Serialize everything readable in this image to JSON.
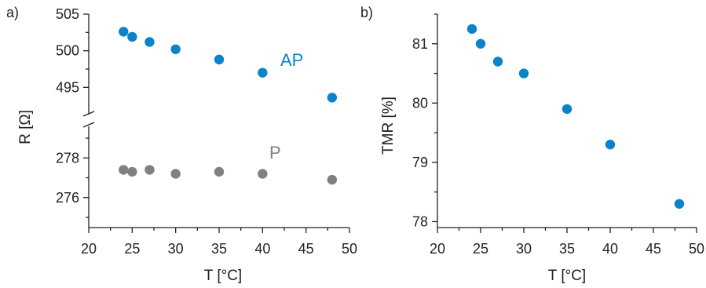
{
  "chart_data": [
    {
      "type": "scatter",
      "panel_label": "a)",
      "xlabel": "T [°C]",
      "ylabel": "R [Ω]",
      "xlim": [
        20,
        50
      ],
      "x_ticks": [
        20,
        25,
        30,
        35,
        40,
        45,
        50
      ],
      "y_broken": true,
      "upper_ylim": [
        493,
        505
      ],
      "upper_y_ticks": [
        495,
        500,
        505
      ],
      "lower_ylim": [
        275,
        279
      ],
      "lower_y_ticks": [
        276,
        278
      ],
      "grid": false,
      "series": [
        {
          "name": "AP",
          "color": "#0a83c9",
          "x": [
            24,
            25,
            27,
            30,
            35,
            40,
            48
          ],
          "y": [
            502.6,
            501.9,
            501.2,
            500.2,
            498.8,
            497.0,
            493.6
          ]
        },
        {
          "name": "P",
          "color": "#808080",
          "x": [
            24,
            25,
            27,
            30,
            35,
            40,
            48
          ],
          "y": [
            277.4,
            277.3,
            277.4,
            277.2,
            277.3,
            277.2,
            276.9
          ]
        }
      ]
    },
    {
      "type": "scatter",
      "panel_label": "b)",
      "xlabel": "T [°C]",
      "ylabel": "TMR [%]",
      "xlim": [
        20,
        50
      ],
      "x_ticks": [
        20,
        25,
        30,
        35,
        40,
        45,
        50
      ],
      "ylim": [
        77.9,
        81.5
      ],
      "y_ticks": [
        78,
        79,
        80,
        81
      ],
      "grid": false,
      "series": [
        {
          "color": "#0a83c9",
          "x": [
            24,
            25,
            27,
            30,
            35,
            40,
            48
          ],
          "y": [
            81.25,
            81.0,
            80.7,
            80.5,
            79.9,
            79.3,
            78.3
          ]
        }
      ]
    }
  ]
}
